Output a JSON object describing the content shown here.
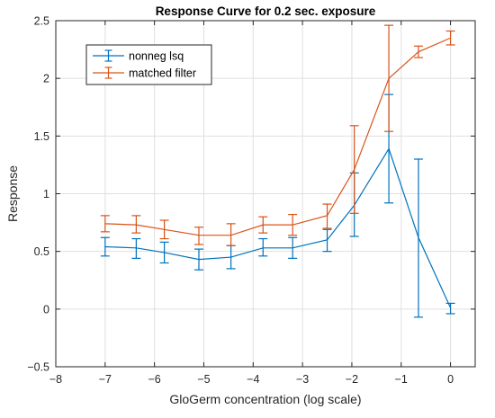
{
  "chart_data": {
    "type": "line",
    "title": "Response Curve for 0.2 sec. exposure",
    "xlabel": "GloGerm concentration (log scale)",
    "ylabel": "Response",
    "xlim": [
      -8,
      0.5
    ],
    "ylim": [
      -0.5,
      2.5
    ],
    "xticks": [
      -8,
      -7,
      -6,
      -5,
      -4,
      -3,
      -2,
      -1,
      0
    ],
    "xtick_labels": [
      "−8",
      "−7",
      "−6",
      "−5",
      "−4",
      "−3",
      "−2",
      "−1",
      "0"
    ],
    "yticks": [
      -0.5,
      0,
      0.5,
      1,
      1.5,
      2,
      2.5
    ],
    "ytick_labels": [
      "−0.5",
      "0",
      "0.5",
      "1",
      "1.5",
      "2",
      "2.5"
    ],
    "grid": true,
    "legend_position": "top-left",
    "x": [
      -7.0,
      -6.37,
      -5.8,
      -5.1,
      -4.45,
      -3.8,
      -3.2,
      -2.5,
      -1.95,
      -1.25,
      -0.65,
      0.0
    ],
    "series": [
      {
        "name": "nonneg lsq",
        "color": "#0072BD",
        "values": [
          0.54,
          0.53,
          0.49,
          0.43,
          0.45,
          0.53,
          0.53,
          0.6,
          0.9,
          1.39,
          0.62,
          0.01
        ],
        "err_low": [
          0.46,
          0.44,
          0.4,
          0.34,
          0.35,
          0.46,
          0.44,
          0.5,
          0.63,
          0.92,
          -0.07,
          -0.04
        ],
        "err_high": [
          0.62,
          0.61,
          0.58,
          0.52,
          0.55,
          0.61,
          0.62,
          0.69,
          1.18,
          1.86,
          1.3,
          0.05
        ]
      },
      {
        "name": "matched filter",
        "color": "#D95319",
        "values": [
          0.74,
          0.73,
          0.69,
          0.64,
          0.64,
          0.73,
          0.73,
          0.81,
          1.21,
          2.0,
          2.23,
          2.35
        ],
        "err_low": [
          0.67,
          0.66,
          0.61,
          0.56,
          0.55,
          0.66,
          0.64,
          0.7,
          0.83,
          1.54,
          2.18,
          2.29
        ],
        "err_high": [
          0.81,
          0.81,
          0.77,
          0.71,
          0.74,
          0.8,
          0.82,
          0.91,
          1.59,
          2.46,
          2.28,
          2.41
        ]
      }
    ]
  }
}
